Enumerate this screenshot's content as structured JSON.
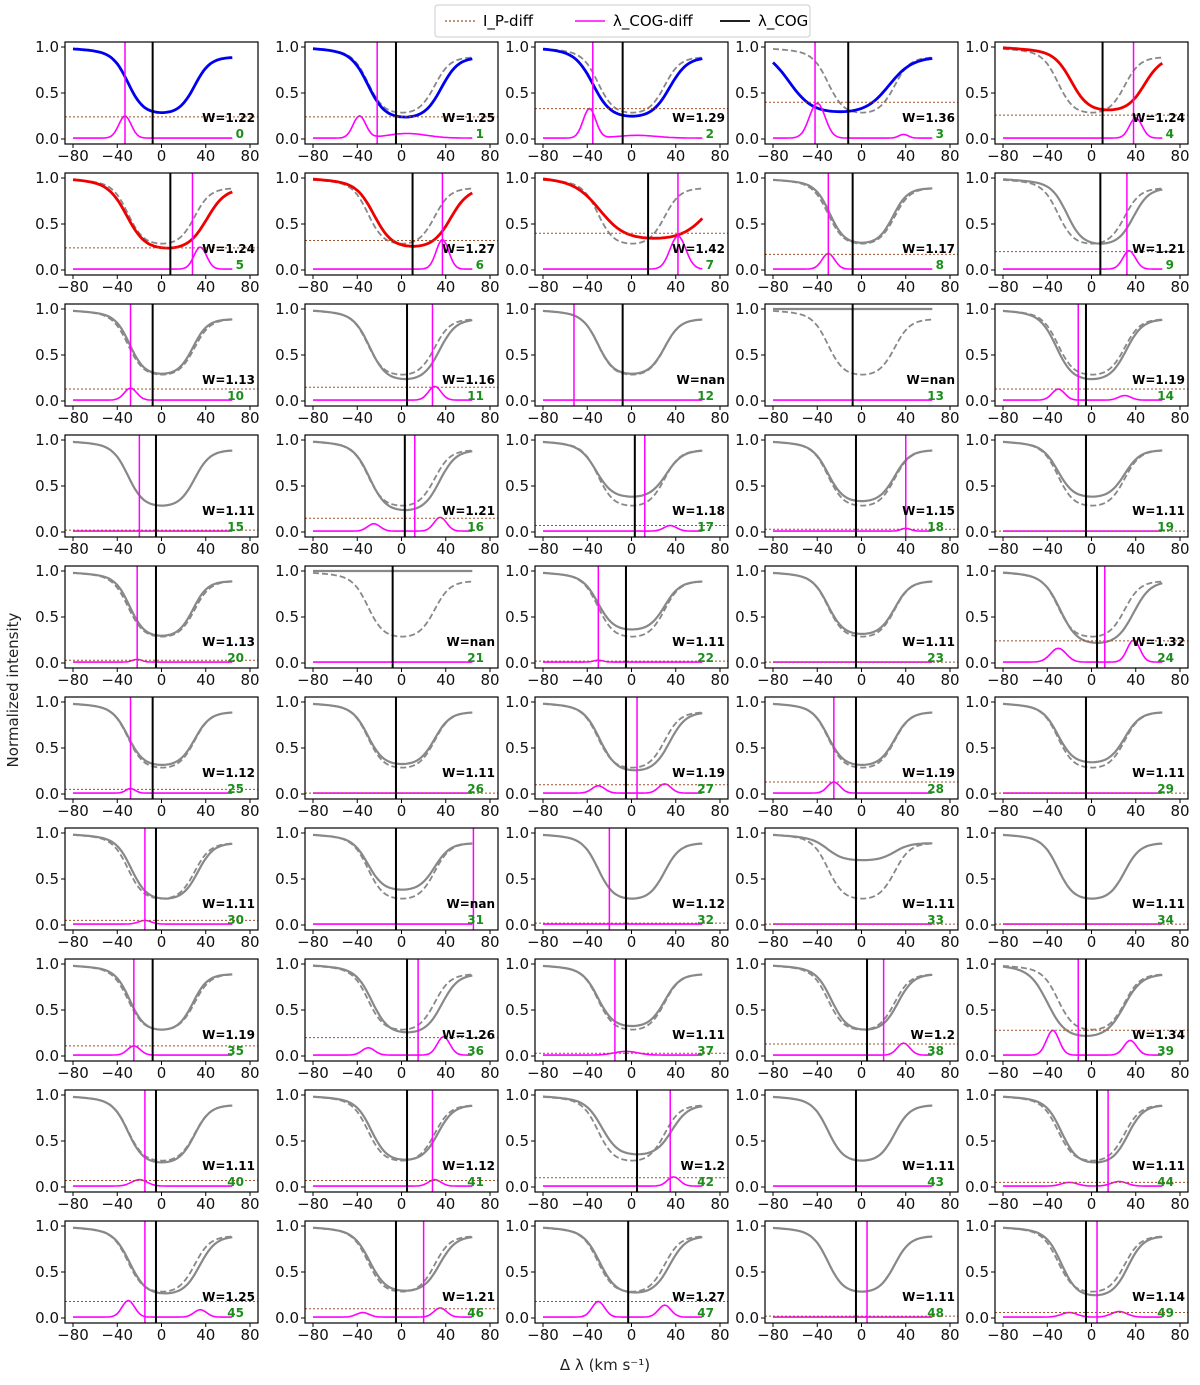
{
  "chart_data": {
    "type": "line",
    "legend": {
      "placement": "top-center",
      "entries": [
        {
          "label": "I_P-diff",
          "style": "dotted",
          "color": "#a0522d"
        },
        {
          "label": "λ_COG-diff",
          "style": "solid",
          "color": "#ff00ff"
        },
        {
          "label": "λ_COG",
          "style": "solid",
          "color": "#000000"
        }
      ]
    },
    "ylabel": "Normalized intensity",
    "xlabel": "Δ λ (km s⁻¹)",
    "xlim": [
      -80,
      80
    ],
    "ylim": [
      0,
      1
    ],
    "xticks": [
      -80,
      -40,
      0,
      40,
      80
    ],
    "yticks": [
      0.0,
      0.5,
      1.0
    ],
    "grid": false,
    "colors": {
      "blue": "#0000ee",
      "red": "#ee0000",
      "gray": "#888888",
      "magenta": "#ff00ff",
      "black": "#000000",
      "threshold": "#a0522d",
      "index": "#1a8f1a"
    },
    "panels": [
      {
        "id": "0",
        "W": "W=1.22",
        "cog": -8,
        "cogd": -33,
        "ip": 0.24,
        "c": "b",
        "dm": 0.27,
        "sh": 0,
        "ws": 1.0,
        "pk": [
          [
            -33,
            0.24,
            8
          ]
        ]
      },
      {
        "id": "1",
        "W": "W=1.25",
        "cog": -5,
        "cogd": -22,
        "ip": 0.24,
        "c": "b",
        "dm": 0.22,
        "sh": 3,
        "ws": 1.1,
        "pk": [
          [
            -38,
            0.24,
            8
          ],
          [
            5,
            0.05,
            25
          ]
        ]
      },
      {
        "id": "2",
        "W": "W=1.29",
        "cog": -8,
        "cogd": -35,
        "ip": 0.33,
        "c": "b",
        "dm": 0.23,
        "sh": 0,
        "ws": 1.15,
        "pk": [
          [
            -38,
            0.32,
            8
          ],
          [
            5,
            0.03,
            25
          ]
        ]
      },
      {
        "id": "3",
        "W": "W=1.36",
        "cog": -12,
        "cogd": -42,
        "ip": 0.4,
        "c": "b",
        "dm": 0.28,
        "sh": -20,
        "ws": 1.5,
        "pk": [
          [
            -40,
            0.38,
            10
          ],
          [
            38,
            0.04,
            6
          ]
        ]
      },
      {
        "id": "4",
        "W": "W=1.24",
        "cog": 10,
        "cogd": 38,
        "ip": 0.26,
        "c": "r",
        "dm": 0.3,
        "sh": 15,
        "ws": 1.1,
        "pk": [
          [
            40,
            0.22,
            8
          ]
        ]
      },
      {
        "id": "5",
        "W": "W=1.24",
        "cog": 8,
        "cogd": 28,
        "ip": 0.24,
        "c": "r",
        "dm": 0.22,
        "sh": 5,
        "ws": 1.2,
        "pk": [
          [
            35,
            0.24,
            8
          ]
        ]
      },
      {
        "id": "6",
        "W": "W=1.27",
        "cog": 10,
        "cogd": 37,
        "ip": 0.32,
        "c": "r",
        "dm": 0.24,
        "sh": 10,
        "ws": 1.15,
        "pk": [
          [
            37,
            0.32,
            8
          ]
        ]
      },
      {
        "id": "7",
        "W": "W=1.42",
        "cog": 15,
        "cogd": 42,
        "ip": 0.4,
        "c": "r",
        "dm": 0.33,
        "sh": 20,
        "ws": 1.6,
        "pk": [
          [
            42,
            0.36,
            10
          ]
        ]
      },
      {
        "id": "8",
        "W": "W=1.17",
        "cog": -8,
        "cogd": -30,
        "ip": 0.17,
        "c": "g",
        "dm": 0.28,
        "sh": 0,
        "ws": 0.95,
        "pk": [
          [
            -30,
            0.17,
            8
          ]
        ]
      },
      {
        "id": "9",
        "W": "W=1.21",
        "cog": 8,
        "cogd": 32,
        "ip": 0.2,
        "c": "g",
        "dm": 0.27,
        "sh": 8,
        "ws": 1.0,
        "pk": [
          [
            34,
            0.2,
            8
          ]
        ]
      },
      {
        "id": "10",
        "W": "W=1.13",
        "cog": -8,
        "cogd": -28,
        "ip": 0.13,
        "c": "g",
        "dm": 0.28,
        "sh": 0,
        "ws": 0.95,
        "pk": [
          [
            -28,
            0.13,
            8
          ]
        ]
      },
      {
        "id": "11",
        "W": "W=1.16",
        "cog": 5,
        "cogd": 28,
        "ip": 0.15,
        "c": "g",
        "dm": 0.22,
        "sh": 3,
        "ws": 1.05,
        "pk": [
          [
            30,
            0.15,
            8
          ]
        ]
      },
      {
        "id": "12",
        "W": "W=nan",
        "cog": -8,
        "cogd": -52,
        "ip": null,
        "c": "g",
        "dm": 0.28,
        "sh": 0,
        "ws": 1.0,
        "pk": []
      },
      {
        "id": "13",
        "W": "W=nan",
        "cog": -8,
        "cogd": null,
        "ip": null,
        "c": "g",
        "dm": 1.0,
        "sh": 0,
        "ws": 1.0,
        "pk": []
      },
      {
        "id": "14",
        "W": "W=1.19",
        "cog": -5,
        "cogd": -12,
        "ip": 0.13,
        "c": "g",
        "dm": 0.22,
        "sh": 0,
        "ws": 1.05,
        "pk": [
          [
            -30,
            0.12,
            8
          ],
          [
            30,
            0.05,
            8
          ]
        ]
      },
      {
        "id": "15",
        "W": "W=1.11",
        "cog": -5,
        "cogd": -20,
        "ip": 0.02,
        "c": "g",
        "dm": 0.27,
        "sh": 0,
        "ws": 1.0,
        "pk": []
      },
      {
        "id": "16",
        "W": "W=1.21",
        "cog": 3,
        "cogd": 12,
        "ip": 0.15,
        "c": "g",
        "dm": 0.22,
        "sh": 3,
        "ws": 1.05,
        "pk": [
          [
            -25,
            0.08,
            8
          ],
          [
            35,
            0.15,
            8
          ]
        ]
      },
      {
        "id": "17",
        "W": "W=1.18",
        "cog": 3,
        "cogd": 12,
        "ip": 0.07,
        "c": "g",
        "dm": 0.37,
        "sh": 0,
        "ws": 1.05,
        "pk": [
          [
            35,
            0.06,
            8
          ]
        ]
      },
      {
        "id": "18",
        "W": "W=1.15",
        "cog": -5,
        "cogd": 40,
        "ip": 0.03,
        "c": "g",
        "dm": 0.32,
        "sh": 0,
        "ws": 1.0,
        "pk": [
          [
            40,
            0.03,
            6
          ]
        ]
      },
      {
        "id": "19",
        "W": "W=1.11",
        "cog": -5,
        "cogd": -5,
        "ip": 0.01,
        "c": "g",
        "dm": 0.37,
        "sh": 0,
        "ws": 1.0,
        "pk": []
      },
      {
        "id": "20",
        "W": "W=1.13",
        "cog": -5,
        "cogd": -22,
        "ip": 0.03,
        "c": "g",
        "dm": 0.28,
        "sh": 0,
        "ws": 0.95,
        "pk": [
          [
            -22,
            0.03,
            6
          ]
        ]
      },
      {
        "id": "21",
        "W": "W=nan",
        "cog": -8,
        "cogd": null,
        "ip": null,
        "c": "g",
        "dm": 1.0,
        "sh": 0,
        "ws": 1.0,
        "pk": []
      },
      {
        "id": "22",
        "W": "W=1.11",
        "cog": -5,
        "cogd": -30,
        "ip": 0.02,
        "c": "g",
        "dm": 0.35,
        "sh": 0,
        "ws": 1.0,
        "pk": [
          [
            -30,
            0.02,
            6
          ]
        ]
      },
      {
        "id": "23",
        "W": "W=1.11",
        "cog": -5,
        "cogd": -5,
        "ip": 0.01,
        "c": "g",
        "dm": 0.3,
        "sh": 0,
        "ws": 1.0,
        "pk": []
      },
      {
        "id": "24",
        "W": "W=1.32",
        "cog": 5,
        "cogd": 12,
        "ip": 0.24,
        "c": "g",
        "dm": 0.2,
        "sh": 5,
        "ws": 1.1,
        "pk": [
          [
            -30,
            0.15,
            10
          ],
          [
            38,
            0.24,
            8
          ]
        ]
      },
      {
        "id": "25",
        "W": "W=1.12",
        "cog": -8,
        "cogd": -28,
        "ip": 0.05,
        "c": "g",
        "dm": 0.3,
        "sh": 0,
        "ws": 1.0,
        "pk": [
          [
            -28,
            0.05,
            6
          ]
        ]
      },
      {
        "id": "26",
        "W": "W=1.11",
        "cog": -5,
        "cogd": -5,
        "ip": 0.01,
        "c": "g",
        "dm": 0.31,
        "sh": 0,
        "ws": 1.0,
        "pk": []
      },
      {
        "id": "27",
        "W": "W=1.19",
        "cog": -5,
        "cogd": 5,
        "ip": 0.1,
        "c": "g",
        "dm": 0.24,
        "sh": 3,
        "ws": 1.05,
        "pk": [
          [
            -30,
            0.08,
            8
          ],
          [
            30,
            0.1,
            8
          ]
        ]
      },
      {
        "id": "28",
        "W": "W=1.19",
        "cog": -5,
        "cogd": -25,
        "ip": 0.13,
        "c": "g",
        "dm": 0.3,
        "sh": 0,
        "ws": 1.0,
        "pk": [
          [
            -25,
            0.12,
            8
          ]
        ]
      },
      {
        "id": "29",
        "W": "W=1.11",
        "cog": -5,
        "cogd": -5,
        "ip": 0.01,
        "c": "g",
        "dm": 0.33,
        "sh": 0,
        "ws": 1.0,
        "pk": []
      },
      {
        "id": "30",
        "W": "W=1.11",
        "cog": -5,
        "cogd": -15,
        "ip": 0.05,
        "c": "g",
        "dm": 0.27,
        "sh": 3,
        "ws": 1.0,
        "pk": [
          [
            -15,
            0.04,
            8
          ]
        ]
      },
      {
        "id": "31",
        "W": "W=nan",
        "cog": -5,
        "cogd": 65,
        "ip": null,
        "c": "g",
        "dm": 0.37,
        "sh": 0,
        "ws": 1.0,
        "pk": []
      },
      {
        "id": "32",
        "W": "W=1.12",
        "cog": -5,
        "cogd": -20,
        "ip": 0.02,
        "c": "g",
        "dm": 0.27,
        "sh": 0,
        "ws": 1.0,
        "pk": []
      },
      {
        "id": "33",
        "W": "W=1.11",
        "cog": -5,
        "cogd": -5,
        "ip": 0.01,
        "c": "g",
        "dm": 0.7,
        "sh": 0,
        "ws": 1.0,
        "pk": []
      },
      {
        "id": "34",
        "W": "W=1.11",
        "cog": -5,
        "cogd": -5,
        "ip": 0.01,
        "c": "g",
        "dm": 0.27,
        "sh": 0,
        "ws": 1.0,
        "pk": []
      },
      {
        "id": "35",
        "W": "W=1.19",
        "cog": -8,
        "cogd": -25,
        "ip": 0.11,
        "c": "g",
        "dm": 0.27,
        "sh": 0,
        "ws": 0.95,
        "pk": [
          [
            -25,
            0.1,
            8
          ]
        ]
      },
      {
        "id": "36",
        "W": "W=1.26",
        "cog": 5,
        "cogd": 15,
        "ip": 0.2,
        "c": "g",
        "dm": 0.24,
        "sh": 5,
        "ws": 1.05,
        "pk": [
          [
            -30,
            0.08,
            8
          ],
          [
            38,
            0.2,
            8
          ]
        ]
      },
      {
        "id": "37",
        "W": "W=1.11",
        "cog": -5,
        "cogd": -15,
        "ip": 0.03,
        "c": "g",
        "dm": 0.31,
        "sh": 0,
        "ws": 1.0,
        "pk": [
          [
            -5,
            0.04,
            15
          ]
        ]
      },
      {
        "id": "38",
        "W": "W=1.2",
        "cog": 5,
        "cogd": 20,
        "ip": 0.13,
        "c": "g",
        "dm": 0.27,
        "sh": 3,
        "ws": 1.0,
        "pk": [
          [
            38,
            0.13,
            8
          ]
        ]
      },
      {
        "id": "39",
        "W": "W=1.34",
        "cog": -5,
        "cogd": -12,
        "ip": 0.28,
        "c": "g",
        "dm": 0.2,
        "sh": -5,
        "ws": 1.15,
        "pk": [
          [
            -35,
            0.27,
            8
          ],
          [
            35,
            0.16,
            8
          ]
        ]
      },
      {
        "id": "40",
        "W": "W=1.11",
        "cog": -5,
        "cogd": -15,
        "ip": 0.07,
        "c": "g",
        "dm": 0.25,
        "sh": 0,
        "ws": 1.0,
        "pk": [
          [
            -20,
            0.07,
            10
          ]
        ]
      },
      {
        "id": "41",
        "W": "W=1.12",
        "cog": 5,
        "cogd": 28,
        "ip": 0.07,
        "c": "g",
        "dm": 0.28,
        "sh": 3,
        "ws": 1.0,
        "pk": [
          [
            30,
            0.07,
            8
          ]
        ]
      },
      {
        "id": "42",
        "W": "W=1.2",
        "cog": 5,
        "cogd": 35,
        "ip": 0.1,
        "c": "g",
        "dm": 0.34,
        "sh": 5,
        "ws": 1.05,
        "pk": [
          [
            38,
            0.1,
            8
          ]
        ]
      },
      {
        "id": "43",
        "W": "W=1.11",
        "cog": -5,
        "cogd": null,
        "ip": null,
        "c": "g",
        "dm": 0.27,
        "sh": 0,
        "ws": 1.0,
        "pk": []
      },
      {
        "id": "44",
        "W": "W=1.11",
        "cog": 5,
        "cogd": 15,
        "ip": 0.05,
        "c": "g",
        "dm": 0.25,
        "sh": 3,
        "ws": 1.0,
        "pk": [
          [
            -20,
            0.04,
            10
          ],
          [
            25,
            0.05,
            10
          ]
        ]
      },
      {
        "id": "45",
        "W": "W=1.25",
        "cog": -5,
        "cogd": -15,
        "ip": 0.18,
        "c": "g",
        "dm": 0.25,
        "sh": 3,
        "ws": 1.05,
        "pk": [
          [
            -30,
            0.18,
            8
          ],
          [
            35,
            0.08,
            8
          ]
        ]
      },
      {
        "id": "46",
        "W": "W=1.21",
        "cog": -5,
        "cogd": 20,
        "ip": 0.1,
        "c": "g",
        "dm": 0.28,
        "sh": 3,
        "ws": 1.05,
        "pk": [
          [
            -35,
            0.05,
            8
          ],
          [
            35,
            0.1,
            8
          ]
        ]
      },
      {
        "id": "47",
        "W": "W=1.27",
        "cog": -3,
        "cogd": -3,
        "ip": 0.18,
        "c": "g",
        "dm": 0.26,
        "sh": 3,
        "ws": 1.05,
        "pk": [
          [
            -30,
            0.17,
            8
          ],
          [
            30,
            0.13,
            8
          ]
        ]
      },
      {
        "id": "48",
        "W": "W=1.11",
        "cog": -5,
        "cogd": 5,
        "ip": 0.02,
        "c": "g",
        "dm": 0.27,
        "sh": 0,
        "ws": 1.0,
        "pk": []
      },
      {
        "id": "49",
        "W": "W=1.14",
        "cog": -5,
        "cogd": 5,
        "ip": 0.06,
        "c": "g",
        "dm": 0.23,
        "sh": 3,
        "ws": 1.0,
        "pk": [
          [
            -20,
            0.05,
            10
          ],
          [
            25,
            0.06,
            10
          ]
        ]
      }
    ]
  }
}
